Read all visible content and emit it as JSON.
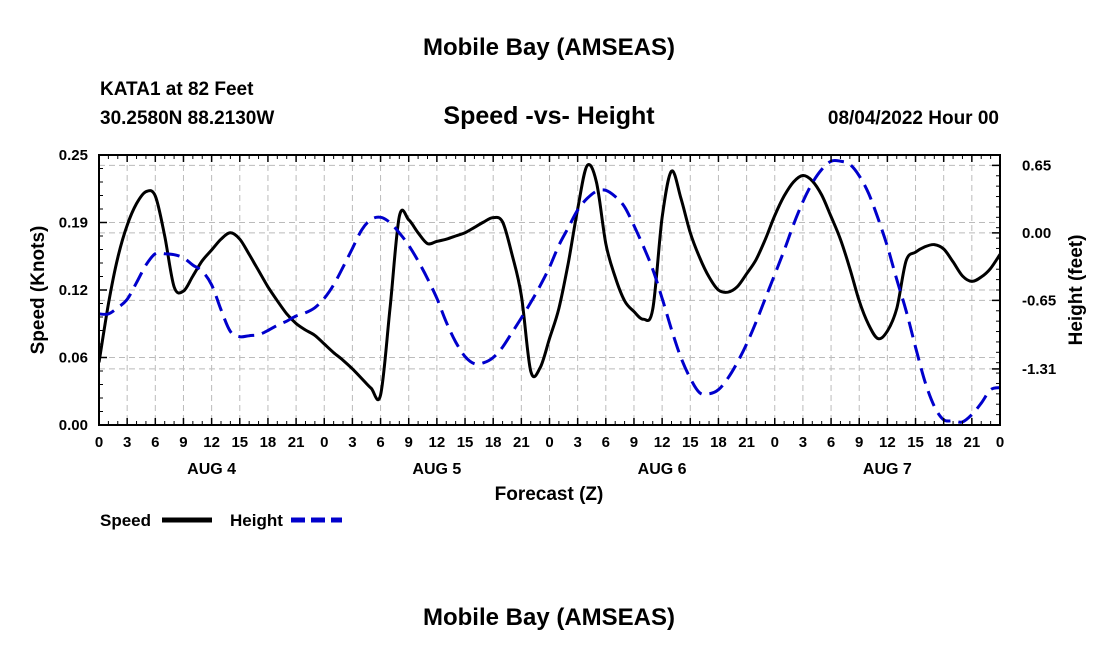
{
  "header": {
    "main_title": "Mobile Bay (AMSEAS)",
    "station": "KATA1 at 82 Feet",
    "coords": "30.2580N  88.2130W",
    "chart_title": "Speed -vs- Height",
    "run_time": "08/04/2022 Hour 00",
    "repeat_title": "Mobile Bay (AMSEAS)"
  },
  "legend": {
    "speed_label": "Speed",
    "height_label": "Height"
  },
  "colors": {
    "speed": "#000000",
    "height": "#0000cc",
    "grid": "#bbbbbb"
  },
  "chart_data": {
    "type": "line",
    "title": "Speed -vs- Height",
    "xlabel": "Forecast (Z)",
    "ylabel": "Speed (Knots)",
    "y2label": "Height (feet)",
    "x_range": [
      0,
      96
    ],
    "ylim": [
      0,
      0.25
    ],
    "y2lim": [
      -1.85,
      0.75
    ],
    "y_ticks": [
      "0.00",
      "0.06",
      "0.12",
      "0.19",
      "0.25"
    ],
    "y_tick_values": [
      0,
      0.0625,
      0.125,
      0.1875,
      0.25
    ],
    "y2_ticks": [
      "0.65",
      "0.00",
      "-0.65",
      "-1.31"
    ],
    "y2_tick_values": [
      0.65,
      0.0,
      -0.65,
      -1.31
    ],
    "x_tick_labels": [
      "0",
      "3",
      "6",
      "9",
      "12",
      "15",
      "18",
      "21",
      "0",
      "3",
      "6",
      "9",
      "12",
      "15",
      "18",
      "21",
      "0",
      "3",
      "6",
      "9",
      "12",
      "15",
      "18",
      "21",
      "0",
      "3",
      "6",
      "9",
      "12",
      "15",
      "18",
      "21",
      "0"
    ],
    "day_labels": [
      {
        "label": "AUG 4",
        "hour": 12
      },
      {
        "label": "AUG 5",
        "hour": 36
      },
      {
        "label": "AUG 6",
        "hour": 60
      },
      {
        "label": "AUG 7",
        "hour": 84
      }
    ],
    "grid": true,
    "legend_position": "bottom-left",
    "series": [
      {
        "name": "Speed",
        "axis": "left",
        "style": "solid",
        "x": [
          0,
          1,
          2,
          3,
          4,
          5,
          6,
          7,
          8,
          9,
          10,
          11,
          12,
          13,
          14,
          15,
          16,
          17,
          18,
          19,
          20,
          21,
          22,
          23,
          24,
          25,
          26,
          27,
          28,
          29,
          30,
          31,
          32,
          33,
          34,
          35,
          36,
          37,
          38,
          39,
          40,
          41,
          42,
          43,
          44,
          45,
          46,
          47,
          48,
          49,
          50,
          51,
          52,
          53,
          54,
          55,
          56,
          57,
          58,
          59,
          60,
          61,
          62,
          63,
          64,
          65,
          66,
          67,
          68,
          69,
          70,
          71,
          72,
          73,
          74,
          75,
          76,
          77,
          78,
          79,
          80,
          81,
          82,
          83,
          84,
          85,
          86,
          87,
          88,
          89,
          90,
          91,
          92,
          93,
          94,
          95,
          96
        ],
        "y": [
          0.058,
          0.112,
          0.155,
          0.185,
          0.205,
          0.216,
          0.212,
          0.175,
          0.128,
          0.124,
          0.138,
          0.152,
          0.162,
          0.172,
          0.178,
          0.172,
          0.158,
          0.143,
          0.128,
          0.115,
          0.103,
          0.094,
          0.088,
          0.083,
          0.075,
          0.067,
          0.06,
          0.052,
          0.043,
          0.034,
          0.028,
          0.107,
          0.193,
          0.19,
          0.178,
          0.168,
          0.17,
          0.172,
          0.175,
          0.178,
          0.183,
          0.188,
          0.192,
          0.188,
          0.158,
          0.12,
          0.05,
          0.053,
          0.08,
          0.108,
          0.15,
          0.2,
          0.24,
          0.225,
          0.168,
          0.137,
          0.115,
          0.105,
          0.098,
          0.107,
          0.192,
          0.235,
          0.21,
          0.178,
          0.155,
          0.137,
          0.125,
          0.123,
          0.128,
          0.14,
          0.153,
          0.172,
          0.194,
          0.212,
          0.225,
          0.231,
          0.226,
          0.213,
          0.193,
          0.172,
          0.145,
          0.115,
          0.093,
          0.08,
          0.087,
          0.108,
          0.152,
          0.16,
          0.165,
          0.167,
          0.163,
          0.151,
          0.138,
          0.133,
          0.137,
          0.145,
          0.158
        ]
      },
      {
        "name": "Height",
        "axis": "right",
        "style": "dashed",
        "x": [
          0,
          1,
          2,
          3,
          4,
          5,
          6,
          7,
          8,
          9,
          10,
          11,
          12,
          13,
          14,
          15,
          16,
          17,
          18,
          19,
          20,
          21,
          22,
          23,
          24,
          25,
          26,
          27,
          28,
          29,
          30,
          31,
          32,
          33,
          34,
          35,
          36,
          37,
          38,
          39,
          40,
          41,
          42,
          43,
          44,
          45,
          46,
          47,
          48,
          49,
          50,
          51,
          52,
          53,
          54,
          55,
          56,
          57,
          58,
          59,
          60,
          61,
          62,
          63,
          64,
          65,
          66,
          67,
          68,
          69,
          70,
          71,
          72,
          73,
          74,
          75,
          76,
          77,
          78,
          79,
          80,
          81,
          82,
          83,
          84,
          85,
          86,
          87,
          88,
          89,
          90,
          91,
          92,
          93,
          94,
          95,
          96
        ],
        "y": [
          -0.78,
          -0.78,
          -0.72,
          -0.64,
          -0.48,
          -0.31,
          -0.2,
          -0.2,
          -0.21,
          -0.24,
          -0.31,
          -0.37,
          -0.5,
          -0.74,
          -0.95,
          -1.0,
          -0.99,
          -0.98,
          -0.94,
          -0.89,
          -0.85,
          -0.8,
          -0.77,
          -0.72,
          -0.63,
          -0.5,
          -0.33,
          -0.15,
          0.03,
          0.13,
          0.15,
          0.1,
          0.0,
          -0.12,
          -0.27,
          -0.44,
          -0.63,
          -0.86,
          -1.05,
          -1.19,
          -1.26,
          -1.25,
          -1.2,
          -1.1,
          -0.96,
          -0.82,
          -0.67,
          -0.51,
          -0.33,
          -0.12,
          0.05,
          0.22,
          0.33,
          0.4,
          0.41,
          0.35,
          0.25,
          0.07,
          -0.13,
          -0.35,
          -0.63,
          -0.93,
          -1.2,
          -1.4,
          -1.54,
          -1.55,
          -1.51,
          -1.4,
          -1.25,
          -1.07,
          -0.86,
          -0.63,
          -0.4,
          -0.17,
          0.08,
          0.3,
          0.48,
          0.61,
          0.69,
          0.69,
          0.66,
          0.55,
          0.38,
          0.14,
          -0.13,
          -0.45,
          -0.75,
          -1.1,
          -1.43,
          -1.67,
          -1.8,
          -1.81,
          -1.82,
          -1.75,
          -1.64,
          -1.51,
          -1.49
        ]
      }
    ]
  }
}
